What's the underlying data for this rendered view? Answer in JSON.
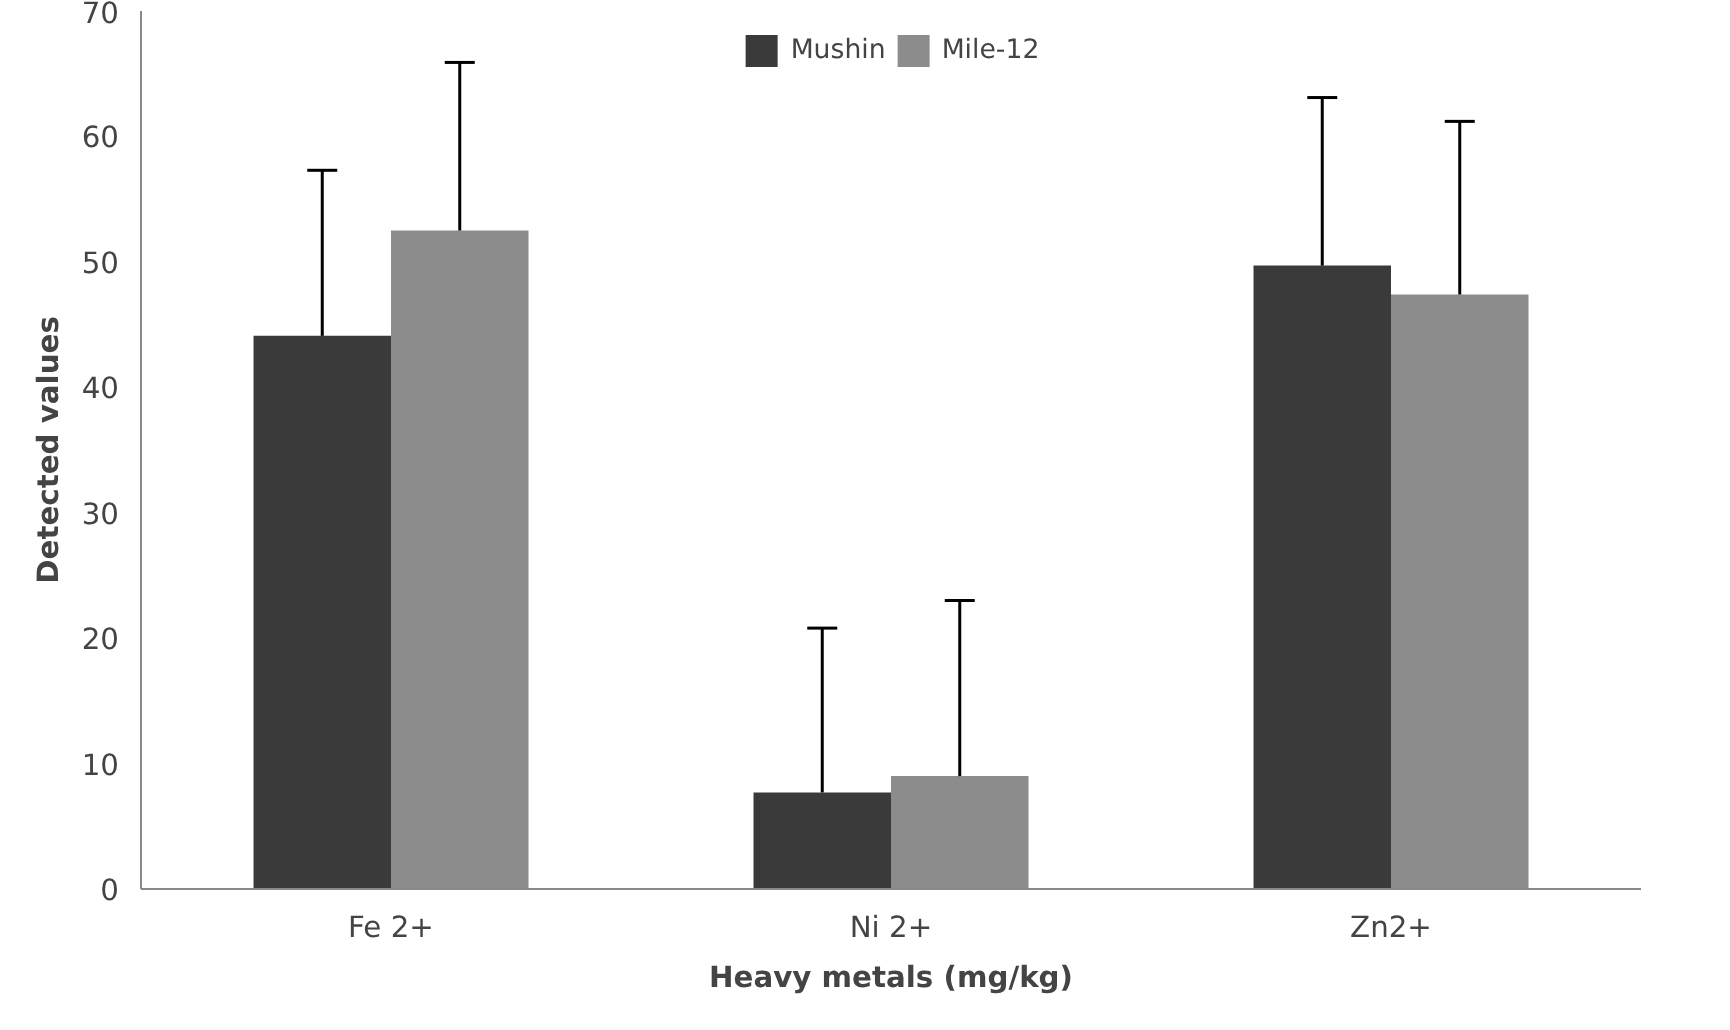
{
  "chart_data": {
    "type": "bar",
    "xlabel": "Heavy metals (mg/kg)",
    "ylabel": "Detected values",
    "categories": [
      "Fe 2+",
      "Ni 2+",
      "Zn2+"
    ],
    "series": [
      {
        "name": "Mushin",
        "color": "#3a3a3a",
        "values": [
          44.1,
          7.7,
          49.7
        ],
        "errors": [
          [
            44.1,
            57.3
          ],
          [
            7.7,
            20.8
          ],
          [
            49.7,
            63.1
          ]
        ]
      },
      {
        "name": "Mile-12",
        "color": "#8c8c8c",
        "values": [
          52.5,
          9.0,
          47.4
        ],
        "errors": [
          [
            52.5,
            65.9
          ],
          [
            9.0,
            23.0
          ],
          [
            47.4,
            61.2
          ]
        ]
      }
    ],
    "ylim": [
      0,
      70
    ],
    "yticks": [
      0,
      10,
      20,
      30,
      40,
      50,
      60,
      70
    ],
    "grid": false,
    "legend": "top"
  }
}
